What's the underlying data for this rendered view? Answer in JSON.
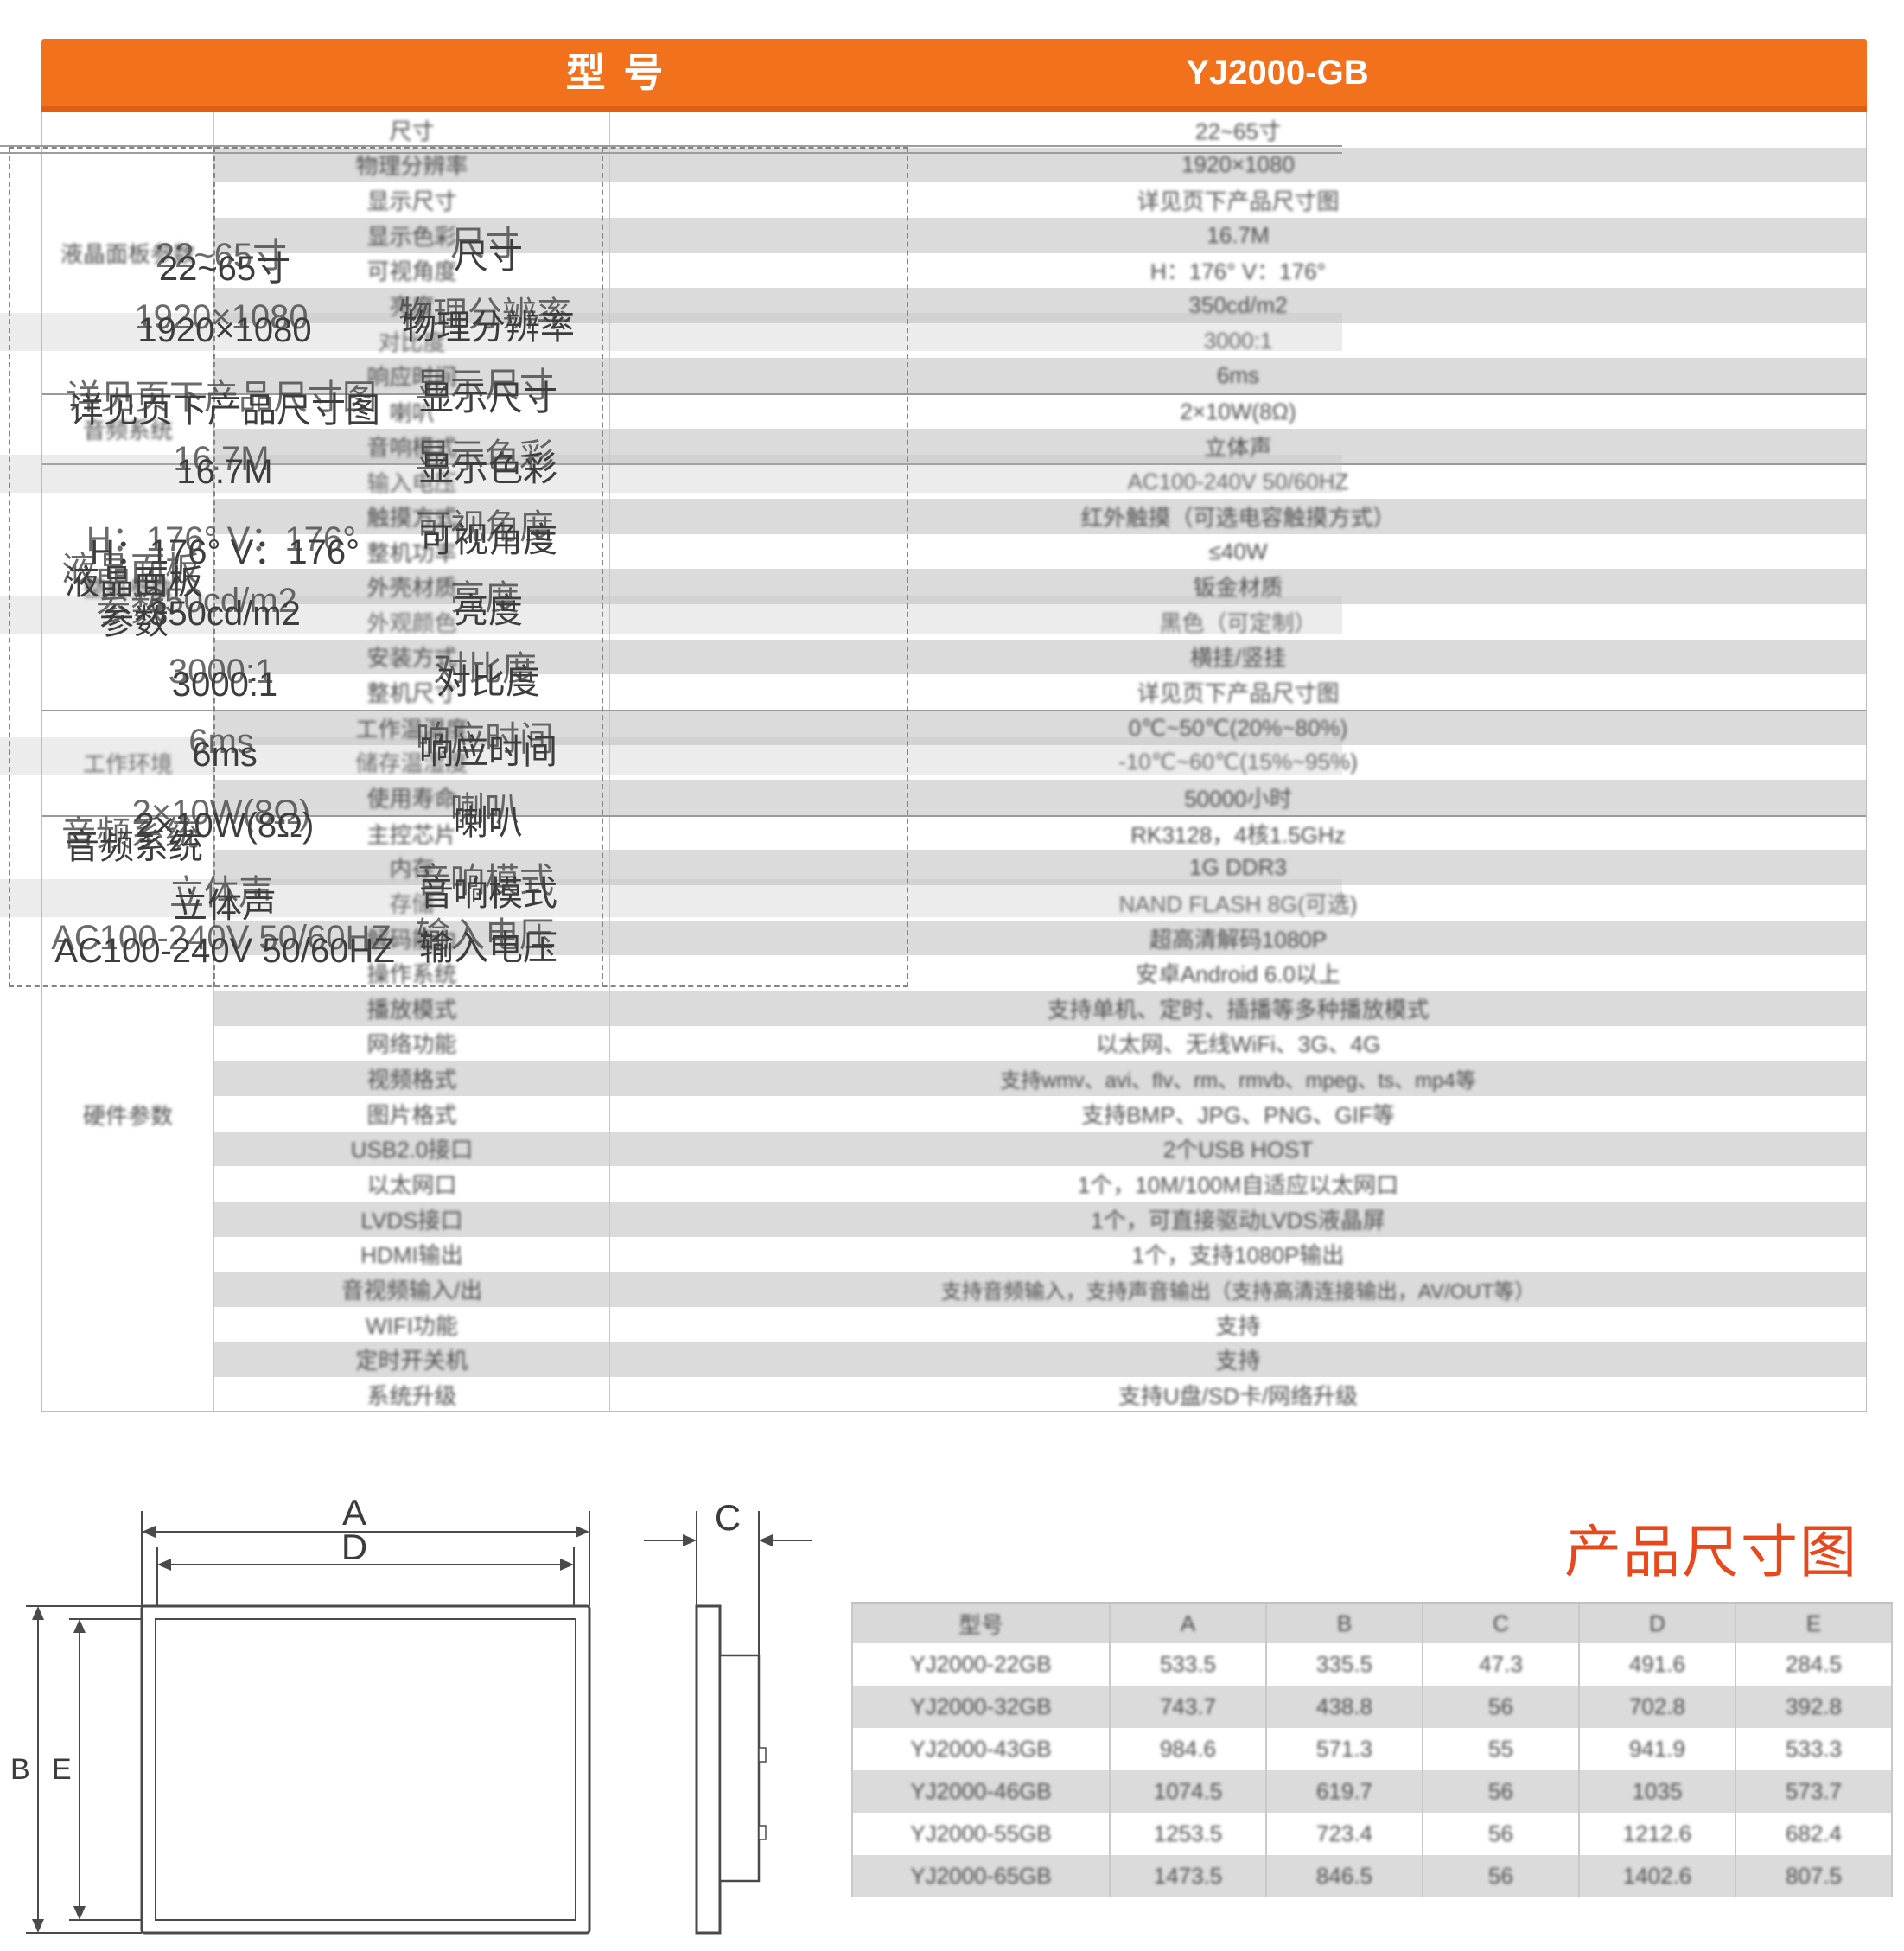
{
  "header": {
    "model_label": "型 号",
    "model_value": "YJ2000-GB",
    "bg_color": "#F1711D"
  },
  "spec_table": {
    "groups": [
      {
        "label": "液晶面板参数",
        "rows": [
          [
            "尺寸",
            "22~65寸"
          ],
          [
            "物理分辨率",
            "1920×1080"
          ],
          [
            "显示尺寸",
            "详见页下产品尺寸图"
          ],
          [
            "显示色彩",
            "16.7M"
          ],
          [
            "可视角度",
            "H：176° V：176°"
          ],
          [
            "亮度",
            "350cd/m2"
          ],
          [
            "对比度",
            "3000:1"
          ],
          [
            "响应时间",
            "6ms"
          ]
        ]
      },
      {
        "label": "音频系统",
        "rows": [
          [
            "喇叭",
            "2×10W(8Ω)"
          ],
          [
            "音响模式",
            "立体声"
          ]
        ]
      },
      {
        "label": "整机参数",
        "rows": [
          [
            "输入电压",
            "AC100-240V 50/60HZ"
          ],
          [
            "触摸方式",
            "红外触摸（可选电容触摸方式）"
          ],
          [
            "整机功率",
            "≤40W"
          ],
          [
            "外壳材质",
            "钣金材质"
          ],
          [
            "外观颜色",
            "黑色（可定制）"
          ],
          [
            "安装方式",
            "横挂/竖挂"
          ],
          [
            "整机尺寸",
            "详见页下产品尺寸图"
          ]
        ]
      },
      {
        "label": "工作环境",
        "rows": [
          [
            "工作温湿度",
            "0℃~50℃(20%~80%)"
          ],
          [
            "储存温湿度",
            "-10℃~60℃(15%~95%)"
          ],
          [
            "使用寿命",
            "50000小时"
          ]
        ]
      },
      {
        "label": "硬件参数",
        "rows": [
          [
            "主控芯片",
            "RK3128，4核1.5GHz"
          ],
          [
            "内存",
            "1G DDR3"
          ],
          [
            "存储",
            "NAND FLASH 8G(可选)"
          ],
          [
            "解码能力",
            "超高清解码1080P"
          ],
          [
            "操作系统",
            "安卓Android 6.0以上"
          ],
          [
            "播放模式",
            "支持单机、定时、插播等多种播放模式"
          ],
          [
            "网络功能",
            "以太网、无线WiFi、3G、4G"
          ],
          [
            "视频格式",
            "支持wmv、avi、flv、rm、rmvb、mpeg、ts、mp4等"
          ],
          [
            "图片格式",
            "支持BMP、JPG、PNG、GIF等"
          ],
          [
            "USB2.0接口",
            "2个USB HOST"
          ],
          [
            "以太网口",
            "1个，10M/100M自适应以太网口"
          ],
          [
            "LVDS接口",
            "1个，可直接驱动LVDS液晶屏"
          ],
          [
            "HDMI输出",
            "1个，支持1080P输出"
          ],
          [
            "音视频输入/出",
            "支持音频输入，支持声音输出（支持高清连接输出，AV/OUT等）"
          ],
          [
            "WIFI功能",
            "支持"
          ],
          [
            "定时开关机",
            "支持"
          ],
          [
            "系统升级",
            "支持U盘/SD卡/网络升级"
          ]
        ]
      }
    ]
  },
  "ghost_layer": {
    "note": "sharp offset duplicate of first rows visible over blurred table",
    "group_labels_visible": [
      "液晶面板",
      "参数",
      "音频系统"
    ],
    "rows_visible": 11
  },
  "dimension_section": {
    "title": "产品尺寸图",
    "title_color": "#E8481B",
    "diagram": {
      "a_label": "A",
      "d_label": "D",
      "b_label": "B",
      "e_label": "E",
      "c_label": "C"
    },
    "table": {
      "headers": [
        "型号",
        "A",
        "B",
        "C",
        "D",
        "E"
      ],
      "rows": [
        [
          "YJ2000-22GB",
          "533.5",
          "335.5",
          "47.3",
          "491.6",
          "284.5"
        ],
        [
          "YJ2000-32GB",
          "743.7",
          "438.8",
          "56",
          "702.8",
          "392.8"
        ],
        [
          "YJ2000-43GB",
          "984.6",
          "571.3",
          "55",
          "941.9",
          "533.3"
        ],
        [
          "YJ2000-46GB",
          "1074.5",
          "619.7",
          "56",
          "1035",
          "573.7"
        ],
        [
          "YJ2000-55GB",
          "1253.5",
          "723.4",
          "56",
          "1212.6",
          "682.4"
        ],
        [
          "YJ2000-65GB",
          "1473.5",
          "846.5",
          "56",
          "1402.6",
          "807.5"
        ]
      ]
    }
  }
}
